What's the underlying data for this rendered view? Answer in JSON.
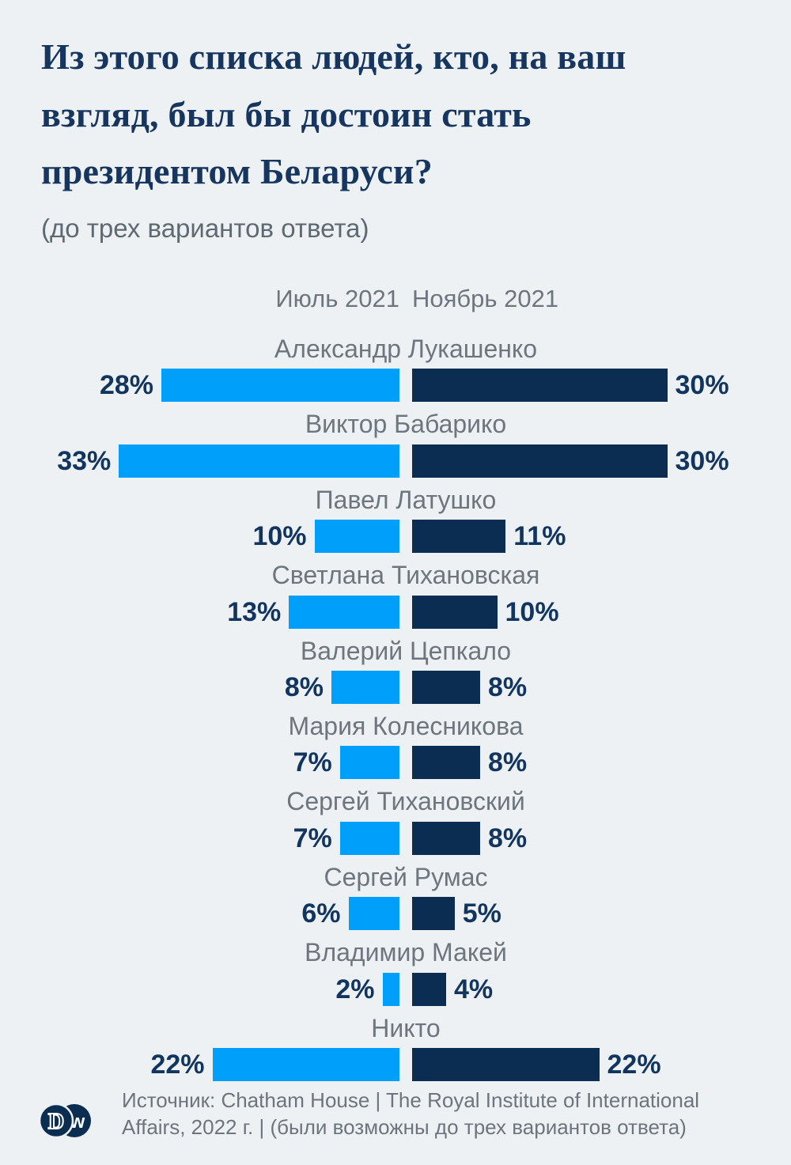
{
  "header": {
    "title": "Из этого списка людей, кто, на ваш взгляд, был бы достоин стать президентом Беларуси?",
    "subtitle": "(до трех вариантов ответа)"
  },
  "legend": {
    "series1": "Июль 2021",
    "series2": "Ноябрь 2021"
  },
  "chart_data": {
    "type": "bar",
    "orientation": "diverging-horizontal",
    "title": "Из этого списка людей, кто, на ваш взгляд, был бы достоин стать президентом Беларуси?",
    "subtitle": "(до трех вариантов ответа)",
    "value_suffix": "%",
    "xlim": [
      0,
      33
    ],
    "legend_position": "top-center",
    "categories": [
      "Александр Лукашенко",
      "Виктор Бабарико",
      "Павел Латушко",
      "Светлана Тихановская",
      "Валерий Цепкало",
      "Мария Колесникова",
      "Сергей Тихановский",
      "Сергей Румас",
      "Владимир Макей",
      "Никто"
    ],
    "series": [
      {
        "name": "Июль 2021",
        "color": "#00a0fa",
        "side": "left",
        "values": [
          28,
          33,
          10,
          13,
          8,
          7,
          7,
          6,
          2,
          22
        ]
      },
      {
        "name": "Ноябрь 2021",
        "color": "#0b2d52",
        "side": "right",
        "values": [
          30,
          30,
          11,
          10,
          8,
          8,
          8,
          5,
          4,
          22
        ]
      }
    ]
  },
  "footer": {
    "source": "Источник: Chatham House | The Royal Institute of International Affairs, 2022 г. | (были возможны до трех вариантов ответа)",
    "logo_letters": {
      "left": "D",
      "right": "w"
    }
  },
  "colors": {
    "background": "#edf1f3",
    "title_text": "#16365f",
    "bar_light": "#00a0fa",
    "bar_dark": "#0b2d52",
    "value_text": "#11355f",
    "label_gray": "#6d767e"
  }
}
